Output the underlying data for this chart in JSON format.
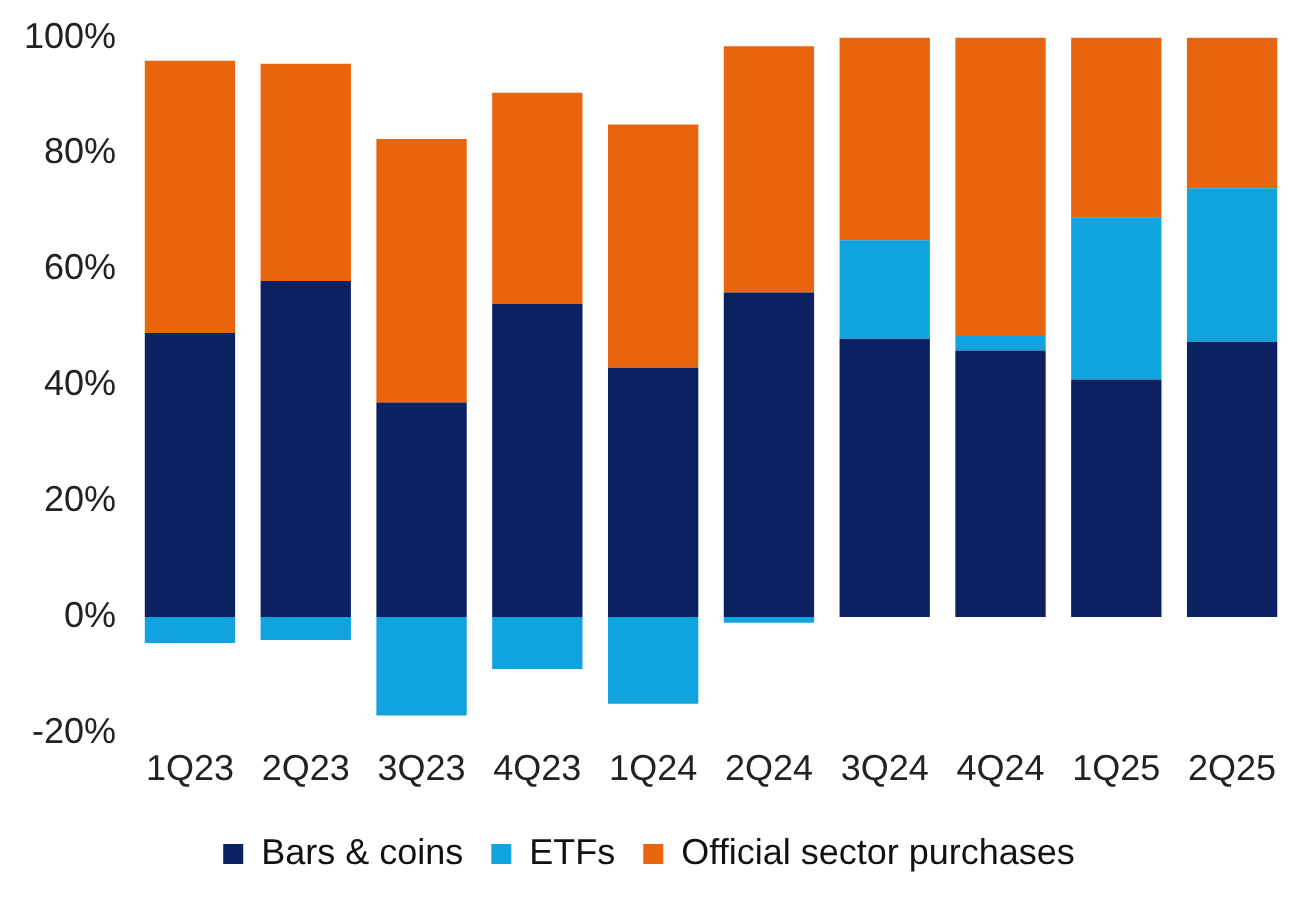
{
  "chart_data": {
    "type": "bar",
    "stacked": true,
    "categories": [
      "1Q23",
      "2Q23",
      "3Q23",
      "4Q23",
      "1Q24",
      "2Q24",
      "3Q24",
      "4Q24",
      "1Q25",
      "2Q25"
    ],
    "series": [
      {
        "name": "Bars & coins",
        "color": "#0b2161",
        "values": [
          49,
          58,
          37,
          54,
          43,
          56,
          48,
          46,
          41,
          47.5
        ]
      },
      {
        "name": "ETFs",
        "color": "#10a3dd",
        "values": [
          -4.5,
          -4,
          -17,
          -9,
          -15,
          -1,
          17,
          2.5,
          28,
          26.5
        ]
      },
      {
        "name": "Official sector purchases",
        "color": "#e8650d",
        "values": [
          47,
          37.5,
          45.5,
          36.5,
          42,
          42.5,
          35,
          51.5,
          31,
          26
        ]
      }
    ],
    "ylim": [
      -20,
      100
    ],
    "yticks": [
      {
        "value": -20,
        "label": "-20%"
      },
      {
        "value": 0,
        "label": "0%"
      },
      {
        "value": 20,
        "label": "20%"
      },
      {
        "value": 40,
        "label": "40%"
      },
      {
        "value": 60,
        "label": "60%"
      },
      {
        "value": 80,
        "label": "80%"
      },
      {
        "value": 100,
        "label": "100%"
      }
    ],
    "grid": false,
    "legend": "bottom"
  }
}
